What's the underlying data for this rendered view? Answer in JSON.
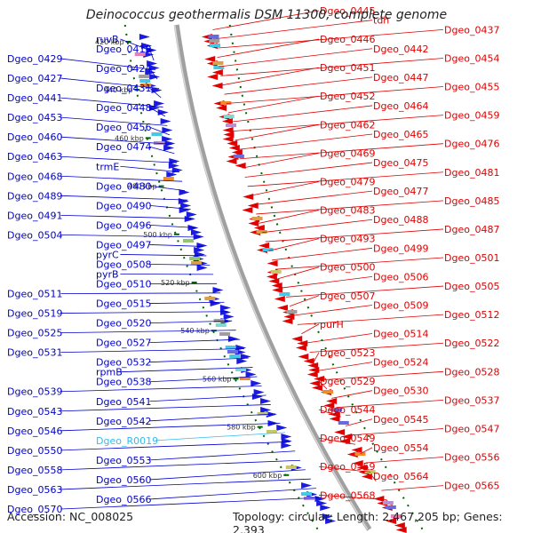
{
  "title": "Deinococcus geothermalis DSM 11300, complete genome",
  "accession": "Accession: NC_008025",
  "summary": "Topology: circular; Length: 2,467,205 bp; Genes: 2,393",
  "colors": {
    "forward": "#0000cc",
    "reverse": "#dd0000",
    "rna": "#33bbee",
    "ruler": "#006600",
    "backbone": "#888888"
  },
  "scale_ticks": [
    "420 kbp",
    "440 kbp",
    "460 kbp",
    "480 kbp",
    "500 kbp",
    "520 kbp",
    "540 kbp",
    "560 kbp",
    "580 kbp",
    "600 kbp"
  ],
  "left_labels": [
    {
      "text": "ruvB",
      "kind": "forward"
    },
    {
      "text": "Dgeo_0419",
      "kind": "forward"
    },
    {
      "text": "Dgeo_0429",
      "kind": "forward"
    },
    {
      "text": "Dgeo_0424",
      "kind": "forward"
    },
    {
      "text": "Dgeo_0427",
      "kind": "forward"
    },
    {
      "text": "Dgeo_0431",
      "kind": "forward"
    },
    {
      "text": "Dgeo_0441",
      "kind": "forward"
    },
    {
      "text": "Dgeo_0448",
      "kind": "forward"
    },
    {
      "text": "Dgeo_0453",
      "kind": "forward"
    },
    {
      "text": "Dgeo_0456",
      "kind": "forward"
    },
    {
      "text": "Dgeo_0460",
      "kind": "forward"
    },
    {
      "text": "Dgeo_0474",
      "kind": "forward"
    },
    {
      "text": "Dgeo_0463",
      "kind": "forward"
    },
    {
      "text": "trmE",
      "kind": "forward"
    },
    {
      "text": "Dgeo_0468",
      "kind": "forward"
    },
    {
      "text": "Dgeo_0480",
      "kind": "forward"
    },
    {
      "text": "Dgeo_0489",
      "kind": "forward"
    },
    {
      "text": "Dgeo_0490",
      "kind": "forward"
    },
    {
      "text": "Dgeo_0491",
      "kind": "forward"
    },
    {
      "text": "Dgeo_0496",
      "kind": "forward"
    },
    {
      "text": "Dgeo_0504",
      "kind": "forward"
    },
    {
      "text": "Dgeo_0497",
      "kind": "forward"
    },
    {
      "text": "pyrC",
      "kind": "forward"
    },
    {
      "text": "Dgeo_0508",
      "kind": "forward"
    },
    {
      "text": "pyrB",
      "kind": "forward"
    },
    {
      "text": "Dgeo_0510",
      "kind": "forward"
    },
    {
      "text": "Dgeo_0511",
      "kind": "forward"
    },
    {
      "text": "Dgeo_0515",
      "kind": "forward"
    },
    {
      "text": "Dgeo_0519",
      "kind": "forward"
    },
    {
      "text": "Dgeo_0520",
      "kind": "forward"
    },
    {
      "text": "Dgeo_0525",
      "kind": "forward"
    },
    {
      "text": "Dgeo_0527",
      "kind": "forward"
    },
    {
      "text": "Dgeo_0531",
      "kind": "forward"
    },
    {
      "text": "Dgeo_0532",
      "kind": "forward"
    },
    {
      "text": "rpmB",
      "kind": "forward"
    },
    {
      "text": "Dgeo_0538",
      "kind": "forward"
    },
    {
      "text": "Dgeo_0539",
      "kind": "forward"
    },
    {
      "text": "Dgeo_0541",
      "kind": "forward"
    },
    {
      "text": "Dgeo_0543",
      "kind": "forward"
    },
    {
      "text": "Dgeo_0542",
      "kind": "forward"
    },
    {
      "text": "Dgeo_0546",
      "kind": "forward"
    },
    {
      "text": "Dgeo_R0019",
      "kind": "rna"
    },
    {
      "text": "Dgeo_0550",
      "kind": "forward"
    },
    {
      "text": "Dgeo_0553",
      "kind": "forward"
    },
    {
      "text": "Dgeo_0558",
      "kind": "forward"
    },
    {
      "text": "Dgeo_0560",
      "kind": "forward"
    },
    {
      "text": "Dgeo_0563",
      "kind": "forward"
    },
    {
      "text": "Dgeo_0566",
      "kind": "forward"
    },
    {
      "text": "Dgeo_0570",
      "kind": "forward"
    }
  ],
  "right_labels": [
    {
      "text": "Dgeo_0445",
      "kind": "reverse"
    },
    {
      "text": "tdh",
      "kind": "reverse"
    },
    {
      "text": "Dgeo_0437",
      "kind": "reverse"
    },
    {
      "text": "Dgeo_0446",
      "kind": "reverse"
    },
    {
      "text": "Dgeo_0442",
      "kind": "reverse"
    },
    {
      "text": "Dgeo_0454",
      "kind": "reverse"
    },
    {
      "text": "Dgeo_0451",
      "kind": "reverse"
    },
    {
      "text": "Dgeo_0447",
      "kind": "reverse"
    },
    {
      "text": "Dgeo_0455",
      "kind": "reverse"
    },
    {
      "text": "Dgeo_0452",
      "kind": "reverse"
    },
    {
      "text": "Dgeo_0464",
      "kind": "reverse"
    },
    {
      "text": "Dgeo_0459",
      "kind": "reverse"
    },
    {
      "text": "Dgeo_0462",
      "kind": "reverse"
    },
    {
      "text": "Dgeo_0465",
      "kind": "reverse"
    },
    {
      "text": "Dgeo_0476",
      "kind": "reverse"
    },
    {
      "text": "Dgeo_0469",
      "kind": "reverse"
    },
    {
      "text": "Dgeo_0475",
      "kind": "reverse"
    },
    {
      "text": "Dgeo_0481",
      "kind": "reverse"
    },
    {
      "text": "Dgeo_0479",
      "kind": "reverse"
    },
    {
      "text": "Dgeo_0477",
      "kind": "reverse"
    },
    {
      "text": "Dgeo_0485",
      "kind": "reverse"
    },
    {
      "text": "Dgeo_0483",
      "kind": "reverse"
    },
    {
      "text": "Dgeo_0488",
      "kind": "reverse"
    },
    {
      "text": "Dgeo_0487",
      "kind": "reverse"
    },
    {
      "text": "Dgeo_0493",
      "kind": "reverse"
    },
    {
      "text": "Dgeo_0499",
      "kind": "reverse"
    },
    {
      "text": "Dgeo_0501",
      "kind": "reverse"
    },
    {
      "text": "Dgeo_0500",
      "kind": "reverse"
    },
    {
      "text": "Dgeo_0506",
      "kind": "reverse"
    },
    {
      "text": "Dgeo_0505",
      "kind": "reverse"
    },
    {
      "text": "Dgeo_0507",
      "kind": "reverse"
    },
    {
      "text": "Dgeo_0509",
      "kind": "reverse"
    },
    {
      "text": "Dgeo_0512",
      "kind": "reverse"
    },
    {
      "text": "purH",
      "kind": "reverse"
    },
    {
      "text": "Dgeo_0514",
      "kind": "reverse"
    },
    {
      "text": "Dgeo_0522",
      "kind": "reverse"
    },
    {
      "text": "Dgeo_0523",
      "kind": "reverse"
    },
    {
      "text": "Dgeo_0524",
      "kind": "reverse"
    },
    {
      "text": "Dgeo_0528",
      "kind": "reverse"
    },
    {
      "text": "Dgeo_0529",
      "kind": "reverse"
    },
    {
      "text": "Dgeo_0530",
      "kind": "reverse"
    },
    {
      "text": "Dgeo_0537",
      "kind": "reverse"
    },
    {
      "text": "Dgeo_0544",
      "kind": "reverse"
    },
    {
      "text": "Dgeo_0545",
      "kind": "reverse"
    },
    {
      "text": "Dgeo_0547",
      "kind": "reverse"
    },
    {
      "text": "Dgeo_0549",
      "kind": "reverse"
    },
    {
      "text": "Dgeo_0554",
      "kind": "reverse"
    },
    {
      "text": "Dgeo_0556",
      "kind": "reverse"
    },
    {
      "text": "Dgeo_0559",
      "kind": "reverse"
    },
    {
      "text": "Dgeo_0564",
      "kind": "reverse"
    },
    {
      "text": "Dgeo_0565",
      "kind": "reverse"
    },
    {
      "text": "Dgeo_0568",
      "kind": "reverse"
    }
  ]
}
